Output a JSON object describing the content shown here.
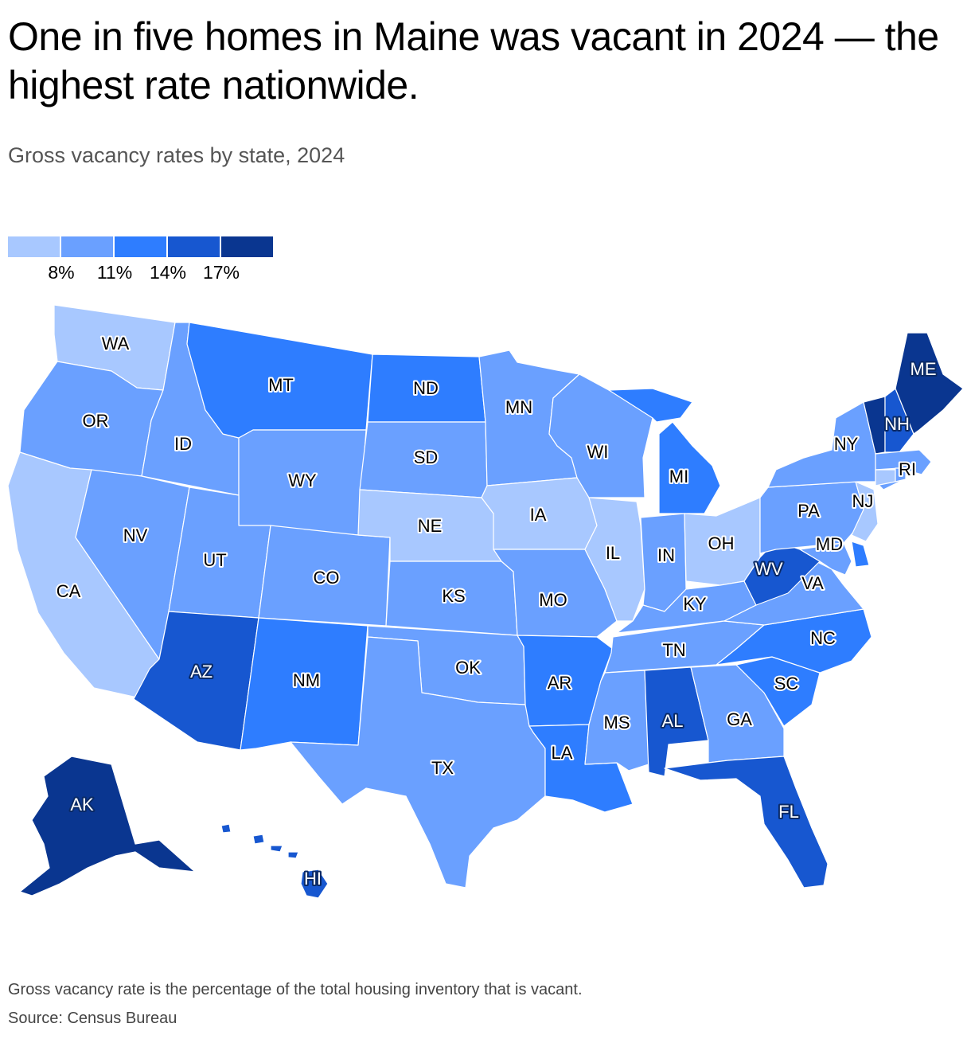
{
  "title": "One in five homes in Maine was vacant in 2024 — the highest rate nationwide.",
  "subtitle": "Gross vacancy rates by state, 2024",
  "legend": {
    "colors": [
      "#a8c8ff",
      "#6aa0ff",
      "#2e7dff",
      "#1757d0",
      "#0a3690"
    ],
    "ticks": [
      "8%",
      "11%",
      "14%",
      "17%"
    ]
  },
  "map": {
    "states": [
      {
        "code": "WA",
        "bin": 0
      },
      {
        "code": "OR",
        "bin": 1
      },
      {
        "code": "CA",
        "bin": 0
      },
      {
        "code": "ID",
        "bin": 1
      },
      {
        "code": "NV",
        "bin": 1
      },
      {
        "code": "MT",
        "bin": 2
      },
      {
        "code": "WY",
        "bin": 1
      },
      {
        "code": "UT",
        "bin": 1
      },
      {
        "code": "AZ",
        "bin": 3
      },
      {
        "code": "CO",
        "bin": 1
      },
      {
        "code": "NM",
        "bin": 2
      },
      {
        "code": "ND",
        "bin": 2
      },
      {
        "code": "SD",
        "bin": 1
      },
      {
        "code": "NE",
        "bin": 0
      },
      {
        "code": "KS",
        "bin": 1
      },
      {
        "code": "OK",
        "bin": 1
      },
      {
        "code": "TX",
        "bin": 1
      },
      {
        "code": "MN",
        "bin": 1
      },
      {
        "code": "IA",
        "bin": 0
      },
      {
        "code": "MO",
        "bin": 1
      },
      {
        "code": "AR",
        "bin": 2
      },
      {
        "code": "LA",
        "bin": 2
      },
      {
        "code": "WI",
        "bin": 1
      },
      {
        "code": "IL",
        "bin": 0
      },
      {
        "code": "MI",
        "bin": 2
      },
      {
        "code": "IN",
        "bin": 1
      },
      {
        "code": "OH",
        "bin": 0
      },
      {
        "code": "KY",
        "bin": 1
      },
      {
        "code": "TN",
        "bin": 1
      },
      {
        "code": "MS",
        "bin": 1
      },
      {
        "code": "AL",
        "bin": 3
      },
      {
        "code": "GA",
        "bin": 1
      },
      {
        "code": "FL",
        "bin": 3
      },
      {
        "code": "SC",
        "bin": 2
      },
      {
        "code": "NC",
        "bin": 2
      },
      {
        "code": "VA",
        "bin": 1
      },
      {
        "code": "WV",
        "bin": 3
      },
      {
        "code": "MD",
        "bin": 1
      },
      {
        "code": "DE",
        "bin": 2
      },
      {
        "code": "NJ",
        "bin": 0
      },
      {
        "code": "PA",
        "bin": 1
      },
      {
        "code": "NY",
        "bin": 1
      },
      {
        "code": "CT",
        "bin": 0
      },
      {
        "code": "RI",
        "bin": 1
      },
      {
        "code": "MA",
        "bin": 1
      },
      {
        "code": "VT",
        "bin": 4
      },
      {
        "code": "NH",
        "bin": 3
      },
      {
        "code": "ME",
        "bin": 4
      },
      {
        "code": "AK",
        "bin": 4
      },
      {
        "code": "HI",
        "bin": 3
      }
    ]
  },
  "footer": {
    "note": "Gross vacancy rate is the percentage of the total housing inventory that is vacant.",
    "source": "Source: Census Bureau"
  }
}
